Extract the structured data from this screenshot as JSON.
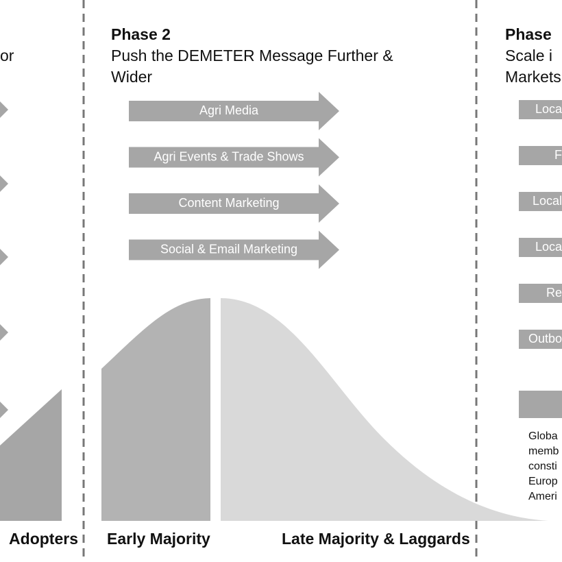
{
  "phase1": {
    "subtitle_fragment": "or",
    "segment": "Adopters"
  },
  "phase2": {
    "title": "Phase 2",
    "subtitle": [
      "Push the DEMETER Message Further &",
      "Wider"
    ],
    "arrows": [
      "Agri Media",
      "Agri Events & Trade Shows",
      "Content Marketing",
      "Social & Email Marketing"
    ],
    "segments": [
      "Early Majority",
      "Late Majority & Laggards"
    ]
  },
  "phase3": {
    "title": "Phase",
    "subtitle": [
      "Scale i",
      "Markets"
    ],
    "arrows": [
      "Loca",
      "F",
      "Local",
      "Loca",
      "Re",
      "Outbo"
    ],
    "note": [
      "Globa",
      "memb",
      "consti",
      "Europ",
      "Ameri"
    ]
  }
}
